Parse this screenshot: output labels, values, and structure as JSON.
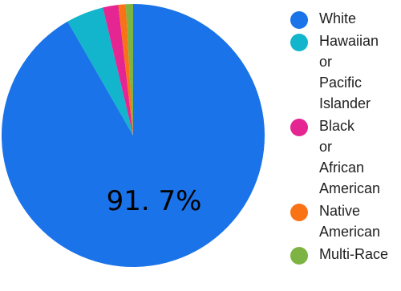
{
  "chart_data": {
    "type": "pie",
    "slices": [
      {
        "label": "White",
        "value": 91.7,
        "color": "#1a73e8"
      },
      {
        "label": "Hawaiian or Pacific Islander",
        "value": 4.6,
        "color": "#12b5cb"
      },
      {
        "label": "Black or African American",
        "value": 1.9,
        "color": "#e52592"
      },
      {
        "label": "Native American",
        "value": 0.9,
        "color": "#f97316"
      },
      {
        "label": "Multi-Race",
        "value": 0.9,
        "color": "#7cb342"
      }
    ],
    "slice_label": "91. 7%",
    "legend_position": "right"
  }
}
